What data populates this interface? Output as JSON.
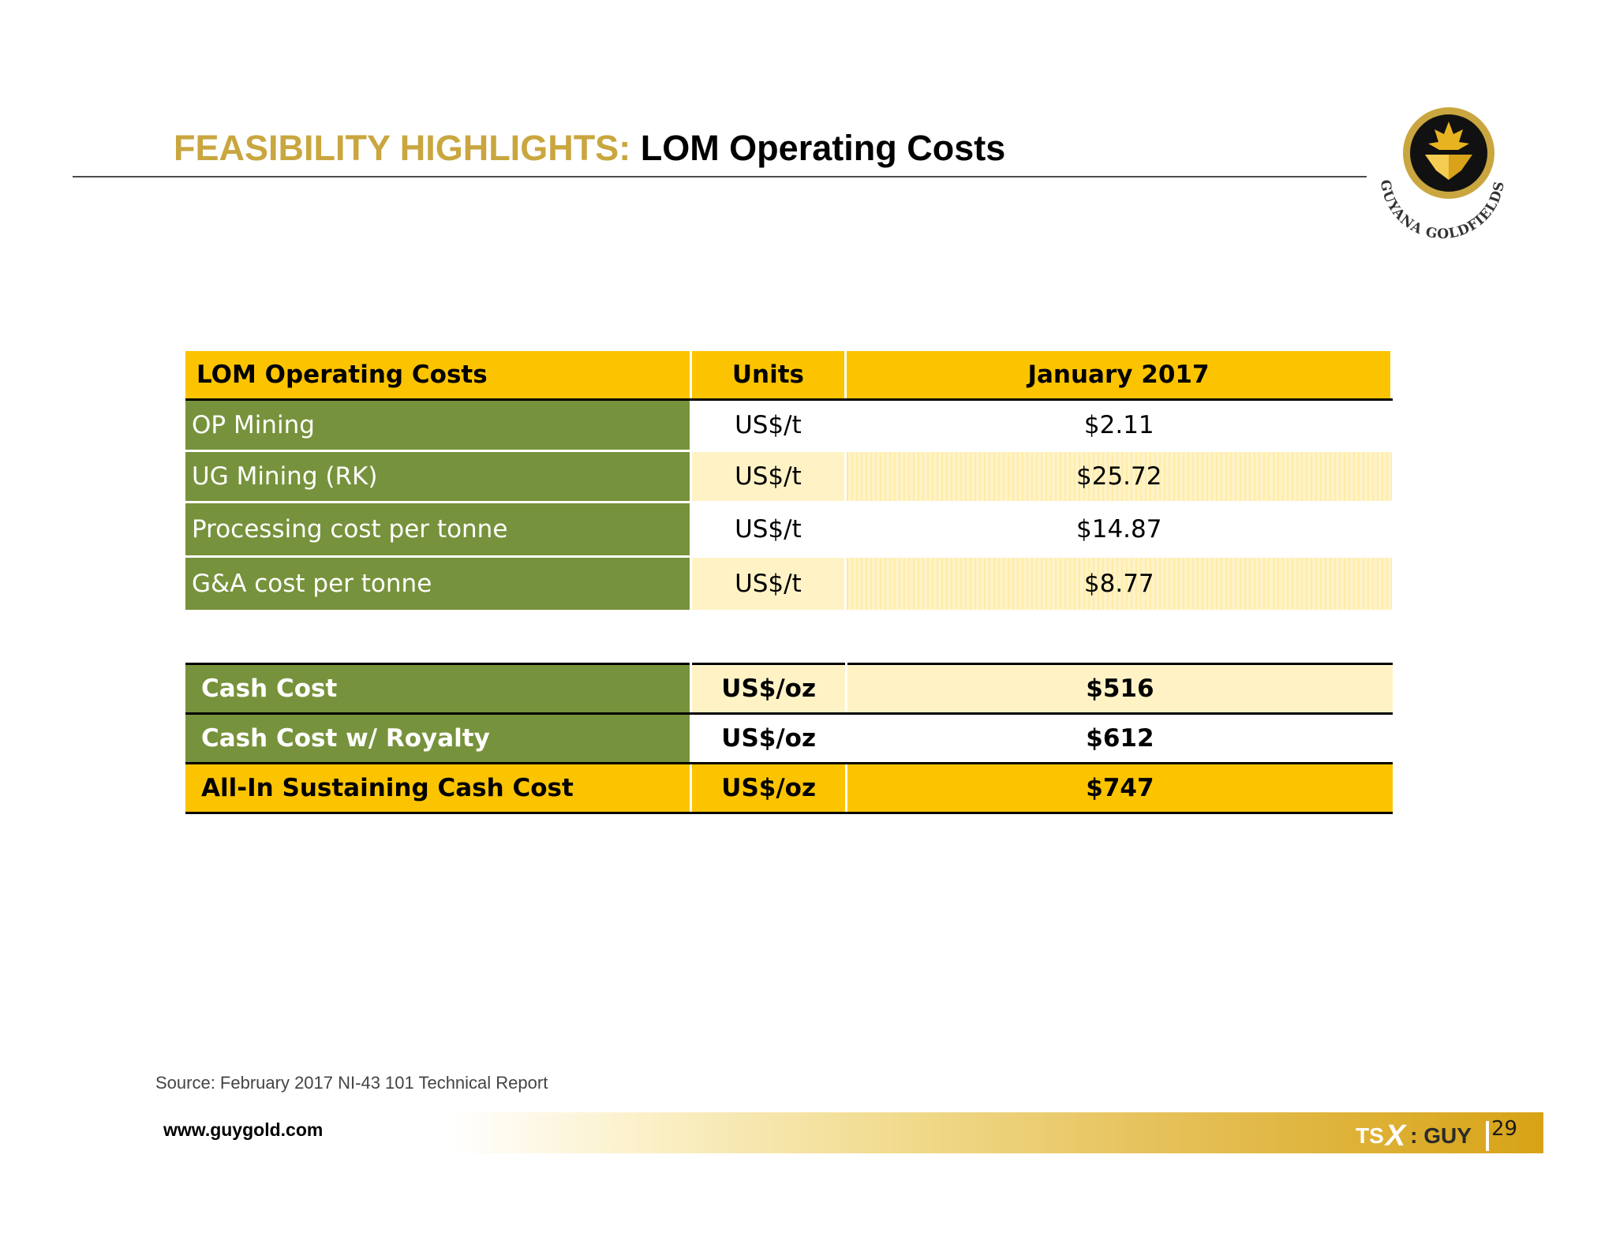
{
  "header": {
    "title_prefix": "FEASIBILITY HIGHLIGHTS:",
    "title_main": "LOM Operating Costs"
  },
  "logo": {
    "text": "GUYANA GOLDFIELDS INC.",
    "icon": "maple-leaf-gold-nugget-icon",
    "colors": {
      "ring": "#c9a63f",
      "inner": "#111111",
      "leaf": "#d9a21b"
    }
  },
  "operating_costs_table": {
    "headers": [
      "LOM Operating Costs",
      "Units",
      "January 2017"
    ],
    "rows": [
      {
        "label": "OP Mining",
        "unit": "US$/t",
        "value": "$2.11"
      },
      {
        "label": "UG Mining (RK)",
        "unit": "US$/t",
        "value": "$25.72"
      },
      {
        "label": "Processing cost per tonne",
        "unit": "US$/t",
        "value": "$14.87"
      },
      {
        "label": "G&A cost per tonne",
        "unit": "US$/t",
        "value": "$8.77"
      }
    ]
  },
  "cash_cost_table": {
    "rows": [
      {
        "label": "Cash Cost",
        "unit": "US$/oz",
        "value": "$516"
      },
      {
        "label": "Cash Cost w/ Royalty",
        "unit": "US$/oz",
        "value": "$612"
      },
      {
        "label": "All-In Sustaining Cash Cost",
        "unit": "US$/oz",
        "value": "$747"
      }
    ]
  },
  "colors": {
    "gold_header": "#fcc400",
    "green_label": "#77923c",
    "cream": "#fff3c6",
    "title_gold": "#c9a63f"
  },
  "footer": {
    "source": "Source: February 2017 NI-43 101 Technical Report",
    "url": "www.guygold.com",
    "ticker_tsx_a": "TS",
    "ticker_tsx_b": "X",
    "ticker_symbol": ": GUY",
    "page_number": "29"
  }
}
